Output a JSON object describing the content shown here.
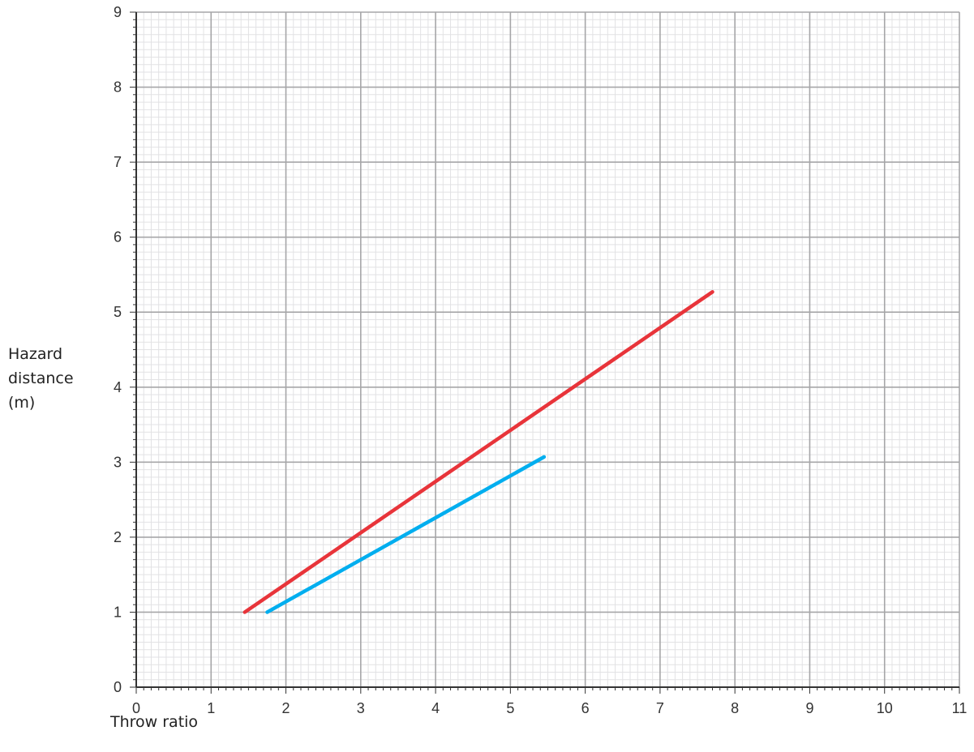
{
  "chart_data": {
    "type": "line",
    "xlabel": "Throw ratio",
    "ylabel_lines": [
      "Hazard",
      "distance",
      "(m)"
    ],
    "xlim": [
      0,
      11
    ],
    "ylim": [
      0,
      9
    ],
    "x_ticks": [
      0,
      1,
      2,
      3,
      4,
      5,
      6,
      7,
      8,
      9,
      10,
      11
    ],
    "y_ticks": [
      0,
      1,
      2,
      3,
      4,
      5,
      6,
      7,
      8,
      9
    ],
    "minor_divisions": 10,
    "grid": true,
    "series": [
      {
        "color": "#e8343a",
        "points": [
          [
            1.45,
            1.0
          ],
          [
            7.7,
            5.27
          ]
        ]
      },
      {
        "color": "#00aeef",
        "points": [
          [
            1.75,
            1.0
          ],
          [
            5.45,
            3.07
          ]
        ]
      }
    ]
  },
  "colors": {
    "major_grid": "#a6a6a8",
    "minor_grid": "#e2e2e4",
    "axis": "#333333"
  }
}
